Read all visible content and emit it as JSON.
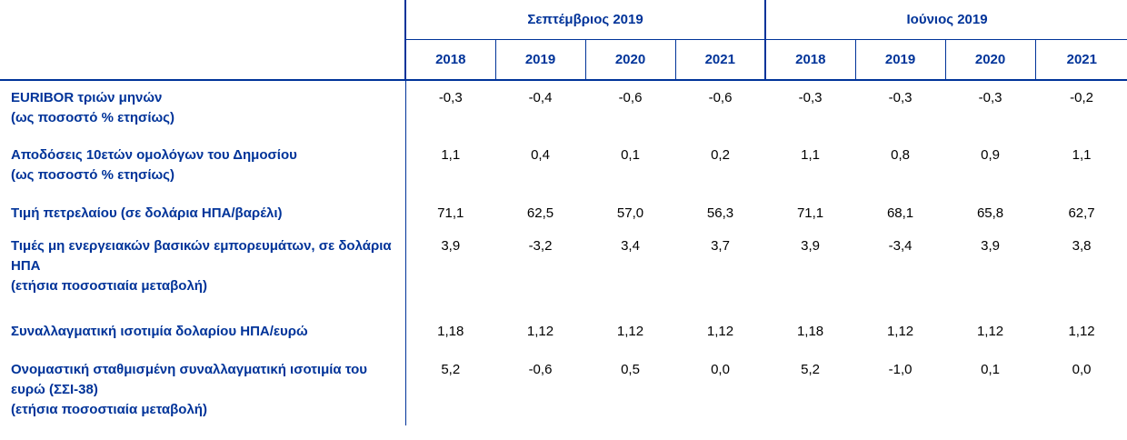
{
  "header": {
    "groups": [
      "Σεπτέμβριος 2019",
      "Ιούνιος 2019"
    ],
    "years": [
      "2018",
      "2019",
      "2020",
      "2021",
      "2018",
      "2019",
      "2020",
      "2021"
    ]
  },
  "rows": [
    {
      "label": "EURIBOR τριών μηνών",
      "note": "(ως ποσοστό % ετησίως)",
      "values": [
        "-0,3",
        "-0,4",
        "-0,6",
        "-0,6",
        "-0,3",
        "-0,3",
        "-0,3",
        "-0,2"
      ]
    },
    {
      "label": "Αποδόσεις 10ετών ομολόγων του Δημοσίου",
      "note": "(ως ποσοστό % ετησίως)",
      "values": [
        "1,1",
        "0,4",
        "0,1",
        "0,2",
        "1,1",
        "0,8",
        "0,9",
        "1,1"
      ]
    },
    {
      "label": "Τιμή πετρελαίου (σε δολάρια ΗΠΑ/βαρέλι)",
      "note": "",
      "values": [
        "71,1",
        "62,5",
        "57,0",
        "56,3",
        "71,1",
        "68,1",
        "65,8",
        "62,7"
      ]
    },
    {
      "label": "Τιμές μη ενεργειακών βασικών εμπορευμάτων, σε δολάρια ΗΠΑ",
      "note": "(ετήσια ποσοστιαία μεταβολή)",
      "values": [
        "3,9",
        "-3,2",
        "3,4",
        "3,7",
        "3,9",
        "-3,4",
        "3,9",
        "3,8"
      ]
    },
    {
      "label": "Συναλλαγματική ισοτιμία δολαρίου ΗΠΑ/ευρώ",
      "note": "",
      "values": [
        "1,18",
        "1,12",
        "1,12",
        "1,12",
        "1,18",
        "1,12",
        "1,12",
        "1,12"
      ]
    },
    {
      "label": "Ονομαστική σταθμισμένη συναλλαγματική ισοτιμία του ευρώ (ΣΣΙ-38)",
      "note": "(ετήσια ποσοστιαία μεταβολή)",
      "values": [
        "5,2",
        "-0,6",
        "0,5",
        "0,0",
        "5,2",
        "-1,0",
        "0,1",
        "0,0"
      ]
    }
  ],
  "colors": {
    "accent": "#003399",
    "text": "#000000"
  }
}
